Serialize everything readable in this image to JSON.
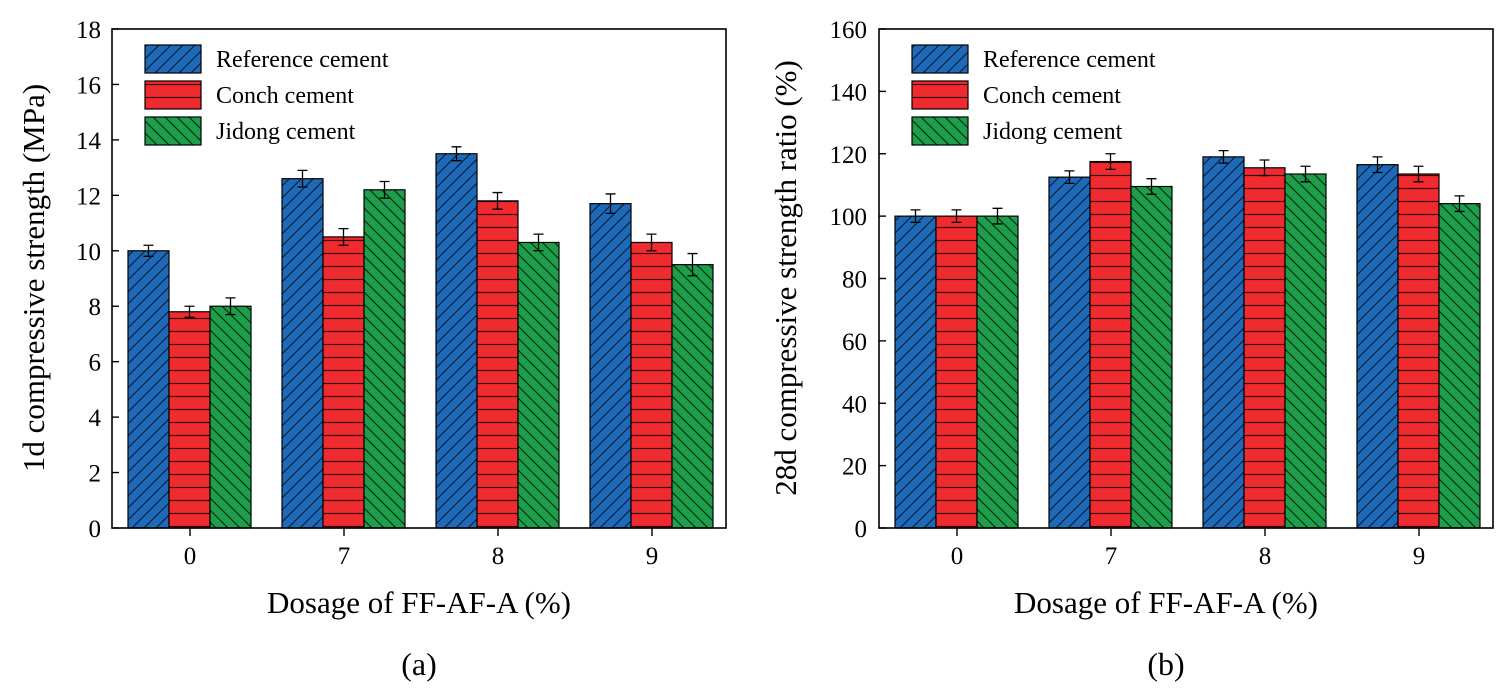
{
  "colors": {
    "reference": "#1f6ab8",
    "conch": "#f02b30",
    "jidong": "#1e9e4a"
  },
  "chart_data": [
    {
      "type": "bar",
      "panel_label": "(a)",
      "title": "",
      "xlabel": "Dosage of FF-AF-A (%)",
      "ylabel": "1d compressive strength (MPa)",
      "categories": [
        "0",
        "7",
        "8",
        "9"
      ],
      "ylim": [
        0,
        18
      ],
      "yticks": [
        0,
        2,
        4,
        6,
        8,
        10,
        12,
        14,
        16,
        18
      ],
      "legend_position": "top-left",
      "series": [
        {
          "name": "Reference cement",
          "key": "reference",
          "values": [
            10.0,
            12.6,
            13.5,
            11.7
          ],
          "errors": [
            0.2,
            0.3,
            0.25,
            0.35
          ]
        },
        {
          "name": "Conch cement",
          "key": "conch",
          "values": [
            7.8,
            10.5,
            11.8,
            10.3
          ],
          "errors": [
            0.2,
            0.3,
            0.3,
            0.3
          ]
        },
        {
          "name": "Jidong cement",
          "key": "jidong",
          "values": [
            8.0,
            12.2,
            10.3,
            9.5
          ],
          "errors": [
            0.3,
            0.3,
            0.3,
            0.4
          ]
        }
      ]
    },
    {
      "type": "bar",
      "panel_label": "(b)",
      "title": "",
      "xlabel": "Dosage of FF-AF-A (%)",
      "ylabel": "28d compressive strength ratio (%)",
      "categories": [
        "0",
        "7",
        "8",
        "9"
      ],
      "ylim": [
        0,
        160
      ],
      "yticks": [
        0,
        20,
        40,
        60,
        80,
        100,
        120,
        140,
        160
      ],
      "legend_position": "top-left",
      "series": [
        {
          "name": "Reference cement",
          "key": "reference",
          "values": [
            100,
            112.5,
            119,
            116.5
          ],
          "errors": [
            2,
            2,
            2,
            2.5
          ]
        },
        {
          "name": "Conch cement",
          "key": "conch",
          "values": [
            100,
            117.5,
            115.5,
            113.5
          ],
          "errors": [
            2,
            2.5,
            2.5,
            2.5
          ]
        },
        {
          "name": "Jidong cement",
          "key": "jidong",
          "values": [
            100,
            109.5,
            113.5,
            104
          ],
          "errors": [
            2.5,
            2.5,
            2.5,
            2.5
          ]
        }
      ]
    }
  ]
}
